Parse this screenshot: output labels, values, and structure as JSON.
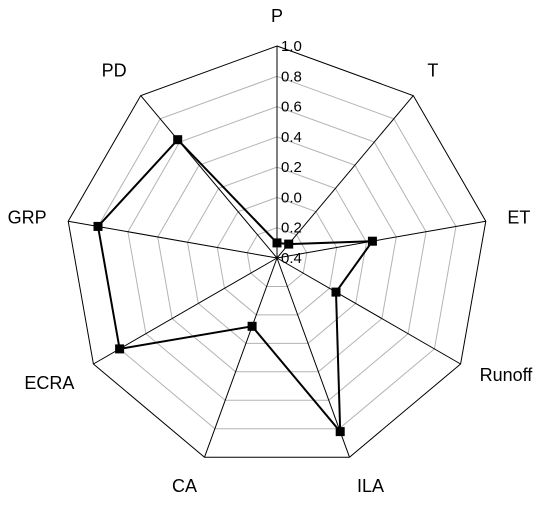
{
  "chart_data": {
    "type": "radar",
    "axes": [
      "P",
      "T",
      "ET",
      "Runoff",
      "ILA",
      "CA",
      "ECRA",
      "GRP",
      "PD"
    ],
    "rlim": [
      -0.4,
      1.0
    ],
    "tick_labels": [
      "-0.4",
      "-0.2",
      "0.0",
      "0.2",
      "0.4",
      "0.6",
      "0.8",
      "1.0"
    ],
    "tick_labels_shown": [
      "0.4",
      "0.2",
      "0.0",
      "0.2",
      "0.4",
      "0.6",
      "0.8",
      "1.0"
    ],
    "gridlines": true,
    "series": [
      {
        "values": [
          -0.3,
          -0.28,
          0.24,
          0.05,
          0.82,
          0.08,
          0.8,
          0.8,
          0.62
        ]
      }
    ],
    "colors": {
      "line": "#000000",
      "marker": "#000000",
      "grid": "#b3b3b3"
    }
  }
}
